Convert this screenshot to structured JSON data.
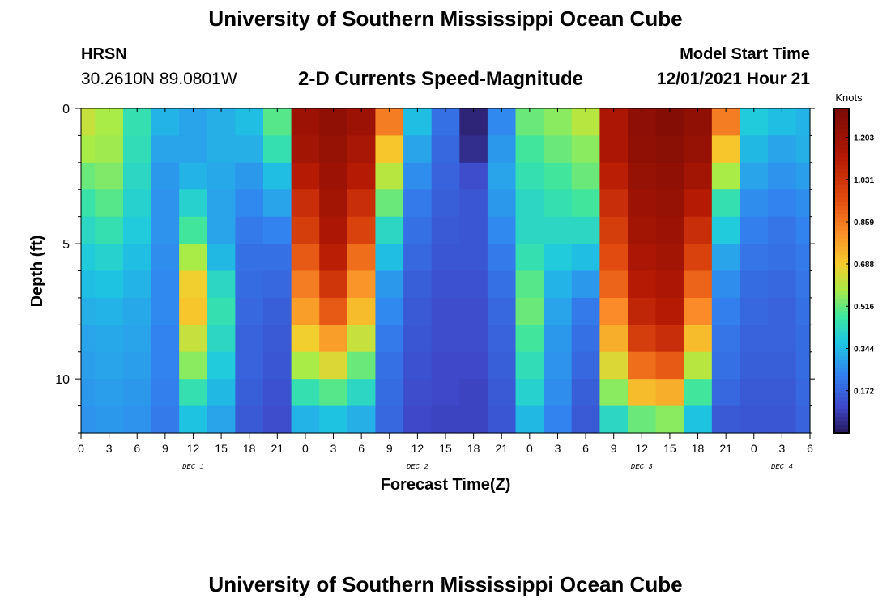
{
  "header": {
    "title": "University of Southern Mississippi Ocean Cube",
    "station": "HRSN",
    "coordinates": "30.2610N  89.0801W",
    "subtitle": "2-D Currents Speed-Magnitude",
    "model_start_label": "Model Start Time",
    "model_start_value": "12/01/2021 Hour 21"
  },
  "footer": {
    "title": "University of Southern Mississippi Ocean Cube"
  },
  "chart_data": {
    "type": "heatmap",
    "title": "2-D Currents Speed-Magnitude",
    "xlabel": "Forecast Time(Z)",
    "ylabel": "Depth (ft)",
    "x_unit": "hours since 12/01 00Z",
    "xlim": [
      0,
      78
    ],
    "ylim": [
      0,
      12
    ],
    "x_tick_labels": [
      "0",
      "3",
      "6",
      "9",
      "12",
      "15",
      "18",
      "21",
      "0",
      "3",
      "6",
      "9",
      "12",
      "15",
      "18",
      "21",
      "0",
      "3",
      "6",
      "9",
      "12",
      "15",
      "18",
      "21",
      "0",
      "3",
      "6"
    ],
    "y_ticks": [
      0,
      5,
      10
    ],
    "y_tick_labels": [
      "0",
      "5",
      "10"
    ],
    "day_labels": [
      {
        "label": "DEC 1",
        "hour": 12
      },
      {
        "label": "DEC 2",
        "hour": 36
      },
      {
        "label": "DEC 3",
        "hour": 60
      },
      {
        "label": "DEC 4",
        "hour": 75
      }
    ],
    "colorbar": {
      "label": "Knots",
      "min": 0,
      "max": 1.32,
      "ticks": [
        0.172,
        0.344,
        0.516,
        0.688,
        0.859,
        1.031,
        1.203
      ],
      "tick_labels": [
        "0.172",
        "0.344",
        "0.516",
        "0.688",
        "0.859",
        "1.031",
        "1.203"
      ]
    },
    "depths_ft": [
      0.5,
      1.5,
      2.5,
      3.5,
      4.5,
      5.5,
      6.5,
      7.5,
      8.5,
      9.5,
      10.5,
      11.5
    ],
    "hours": [
      0,
      3,
      6,
      9,
      12,
      15,
      18,
      21,
      24,
      27,
      30,
      33,
      36,
      39,
      42,
      45,
      48,
      51,
      54,
      57,
      60,
      63,
      66,
      69,
      72,
      75,
      78
    ],
    "speed_knots": [
      [
        0.62,
        0.58,
        0.45,
        0.33,
        0.3,
        0.32,
        0.35,
        0.5,
        1.2,
        1.24,
        1.2,
        0.85,
        0.35,
        0.2,
        0.03,
        0.25,
        0.52,
        0.55,
        0.6,
        1.15,
        1.25,
        1.28,
        1.24,
        0.85,
        0.38,
        0.35,
        0.33
      ],
      [
        0.58,
        0.57,
        0.44,
        0.3,
        0.3,
        0.32,
        0.32,
        0.45,
        1.18,
        1.22,
        1.16,
        0.7,
        0.3,
        0.18,
        0.05,
        0.28,
        0.48,
        0.52,
        0.55,
        1.15,
        1.24,
        1.26,
        1.22,
        0.7,
        0.34,
        0.3,
        0.32
      ],
      [
        0.52,
        0.54,
        0.42,
        0.28,
        0.33,
        0.31,
        0.28,
        0.35,
        1.12,
        1.2,
        1.12,
        0.6,
        0.26,
        0.17,
        0.12,
        0.3,
        0.45,
        0.48,
        0.52,
        1.1,
        1.22,
        1.24,
        1.18,
        0.58,
        0.3,
        0.27,
        0.29
      ],
      [
        0.46,
        0.5,
        0.4,
        0.27,
        0.4,
        0.3,
        0.25,
        0.3,
        1.05,
        1.18,
        1.05,
        0.52,
        0.22,
        0.16,
        0.14,
        0.28,
        0.42,
        0.45,
        0.48,
        1.05,
        1.2,
        1.22,
        1.12,
        0.45,
        0.26,
        0.24,
        0.26
      ],
      [
        0.42,
        0.45,
        0.38,
        0.27,
        0.48,
        0.3,
        0.22,
        0.24,
        1.0,
        1.15,
        0.98,
        0.42,
        0.2,
        0.15,
        0.14,
        0.25,
        0.42,
        0.42,
        0.42,
        1.0,
        1.18,
        1.2,
        1.05,
        0.38,
        0.23,
        0.21,
        0.24
      ],
      [
        0.38,
        0.4,
        0.35,
        0.26,
        0.58,
        0.34,
        0.2,
        0.2,
        0.92,
        1.1,
        0.88,
        0.35,
        0.18,
        0.14,
        0.14,
        0.22,
        0.45,
        0.38,
        0.35,
        0.95,
        1.15,
        1.18,
        0.98,
        0.3,
        0.21,
        0.2,
        0.22
      ],
      [
        0.35,
        0.36,
        0.33,
        0.25,
        0.68,
        0.42,
        0.19,
        0.18,
        0.85,
        1.02,
        0.8,
        0.28,
        0.16,
        0.13,
        0.13,
        0.2,
        0.5,
        0.33,
        0.28,
        0.9,
        1.12,
        1.15,
        0.9,
        0.26,
        0.19,
        0.18,
        0.21
      ],
      [
        0.32,
        0.33,
        0.31,
        0.25,
        0.7,
        0.45,
        0.18,
        0.16,
        0.78,
        0.92,
        0.72,
        0.25,
        0.15,
        0.12,
        0.12,
        0.18,
        0.52,
        0.3,
        0.22,
        0.82,
        1.08,
        1.12,
        0.82,
        0.23,
        0.18,
        0.17,
        0.2
      ],
      [
        0.3,
        0.31,
        0.3,
        0.24,
        0.62,
        0.42,
        0.17,
        0.15,
        0.68,
        0.78,
        0.62,
        0.22,
        0.14,
        0.12,
        0.12,
        0.17,
        0.48,
        0.28,
        0.2,
        0.75,
        1.0,
        1.05,
        0.72,
        0.21,
        0.17,
        0.17,
        0.19
      ],
      [
        0.29,
        0.3,
        0.29,
        0.24,
        0.55,
        0.38,
        0.17,
        0.14,
        0.58,
        0.65,
        0.52,
        0.2,
        0.13,
        0.11,
        0.11,
        0.16,
        0.44,
        0.27,
        0.18,
        0.65,
        0.88,
        0.92,
        0.6,
        0.2,
        0.16,
        0.16,
        0.19
      ],
      [
        0.28,
        0.29,
        0.28,
        0.23,
        0.45,
        0.34,
        0.16,
        0.13,
        0.45,
        0.5,
        0.42,
        0.19,
        0.12,
        0.11,
        0.1,
        0.15,
        0.4,
        0.26,
        0.16,
        0.55,
        0.72,
        0.75,
        0.48,
        0.18,
        0.15,
        0.15,
        0.18
      ],
      [
        0.27,
        0.28,
        0.27,
        0.22,
        0.36,
        0.3,
        0.15,
        0.12,
        0.33,
        0.36,
        0.32,
        0.18,
        0.11,
        0.1,
        0.1,
        0.14,
        0.34,
        0.24,
        0.15,
        0.42,
        0.52,
        0.55,
        0.36,
        0.15,
        0.14,
        0.14,
        0.17
      ]
    ]
  }
}
